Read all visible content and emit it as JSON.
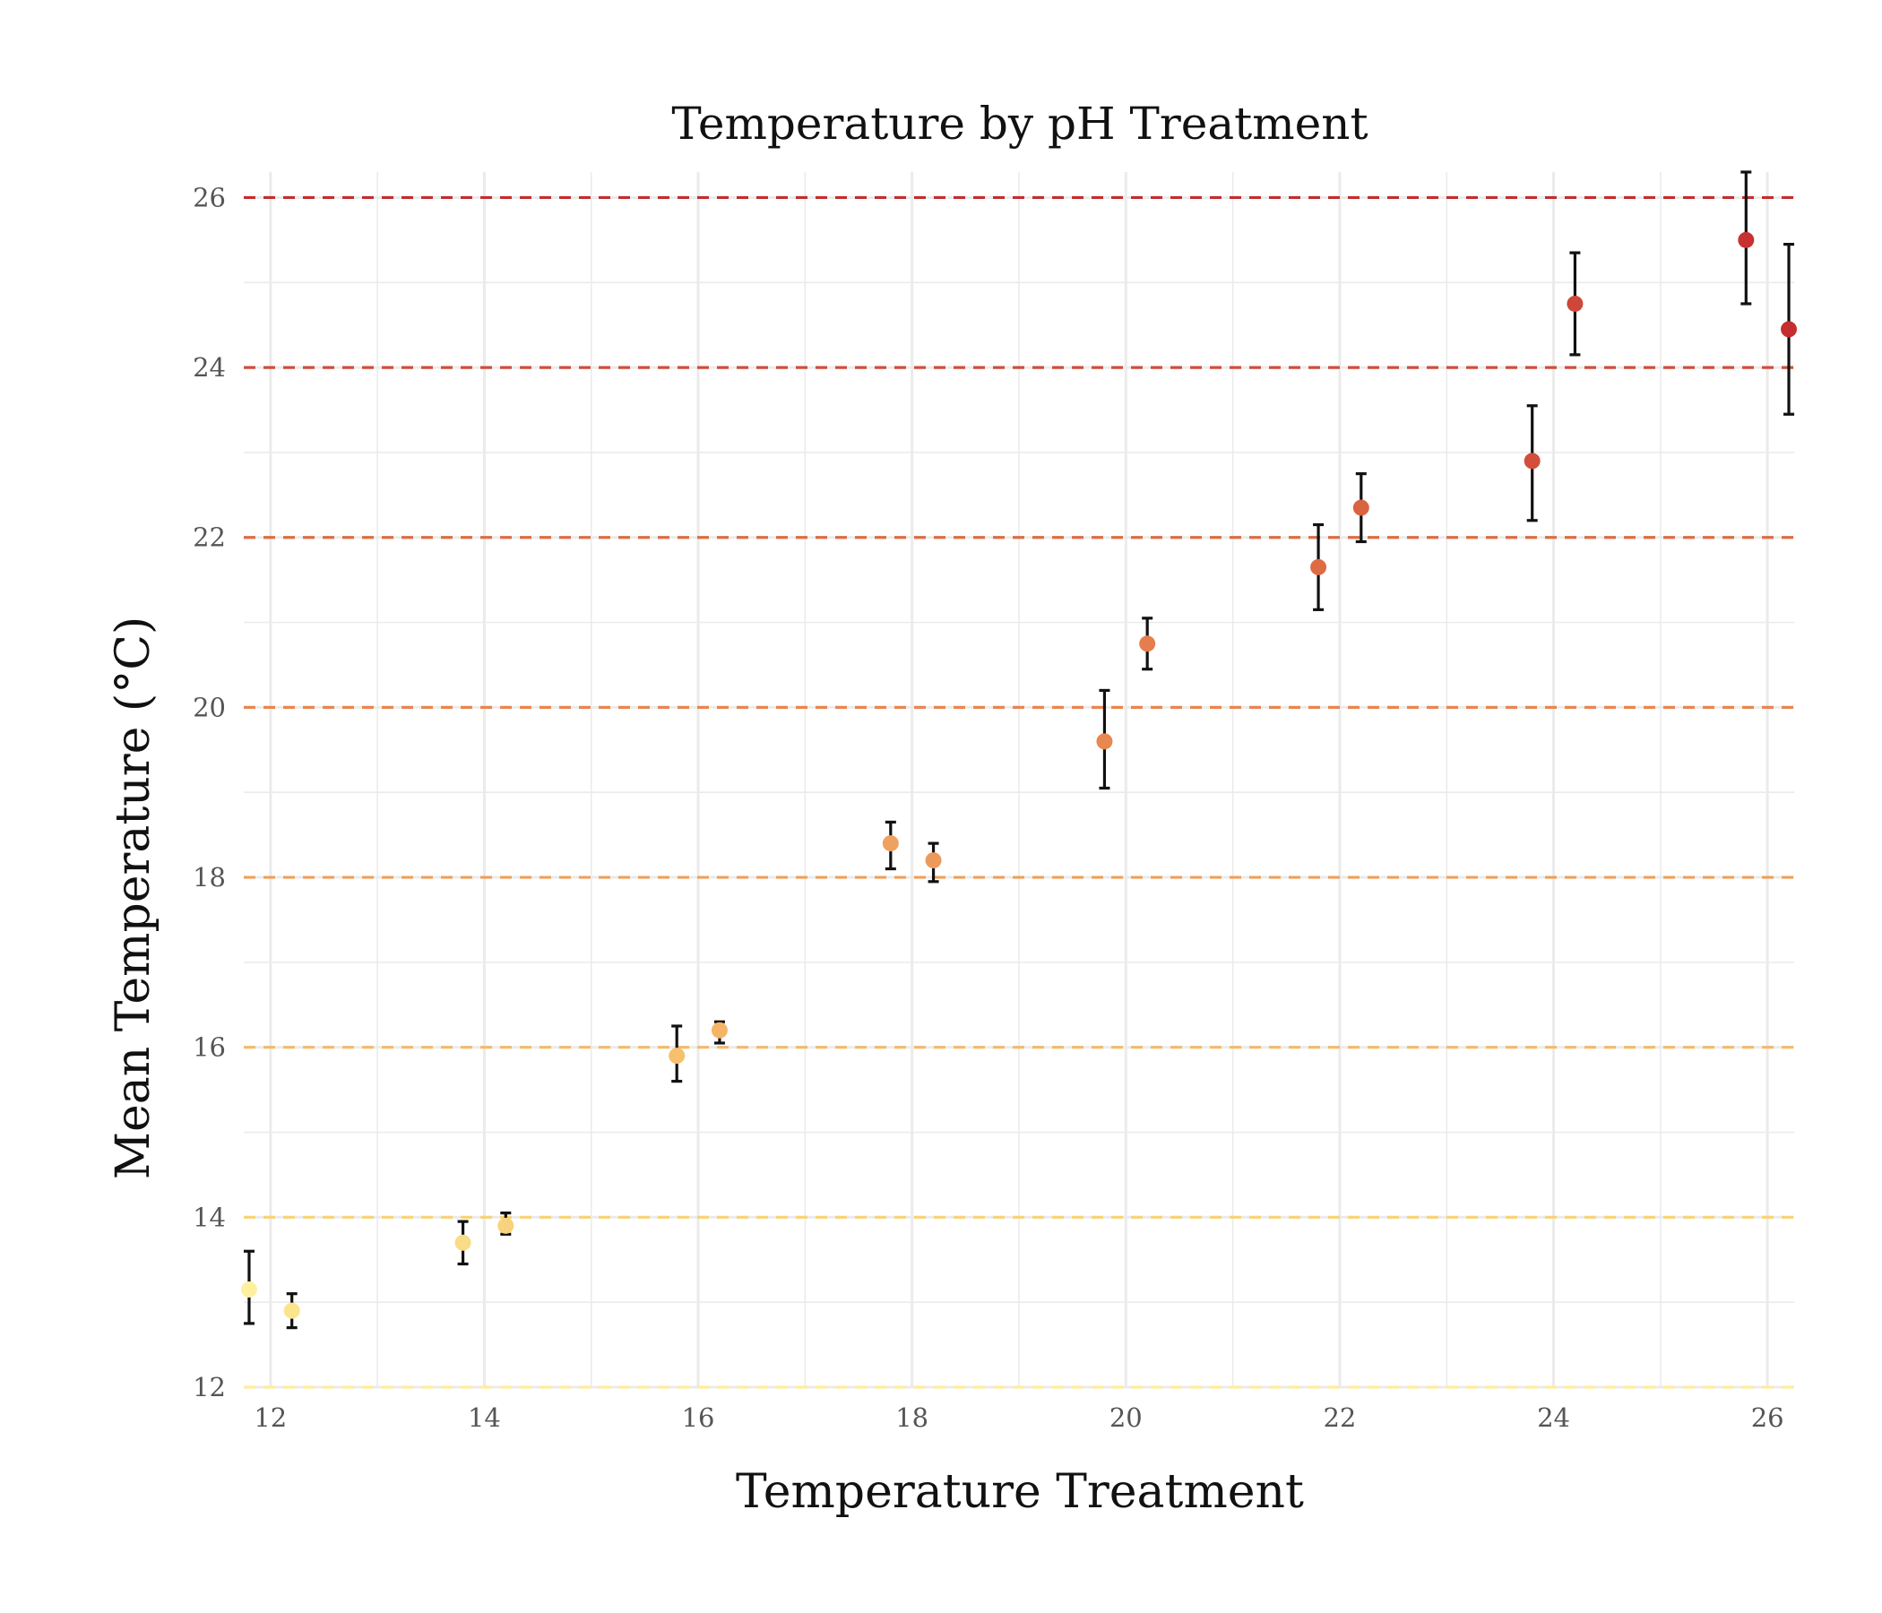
{
  "chart_data": {
    "type": "scatter",
    "title": "Temperature by pH Treatment",
    "xlabel": "Temperature Treatment",
    "ylabel": "Mean Temperature (°C)",
    "xlim": [
      11.75,
      26.25
    ],
    "ylim": [
      12,
      26.3
    ],
    "xticks": [
      12,
      14,
      16,
      18,
      20,
      22,
      24,
      26
    ],
    "yticks": [
      12,
      14,
      16,
      18,
      20,
      22,
      24,
      26
    ],
    "xtick_labels": [
      "12",
      "14",
      "16",
      "18",
      "20",
      "22",
      "24",
      "26"
    ],
    "ytick_labels": [
      "12",
      "14",
      "16",
      "18",
      "20",
      "22",
      "24",
      "26"
    ],
    "grid": true,
    "legend": "none",
    "reference_lines": [
      {
        "y": 12,
        "color": "#ffec9a",
        "style": "dashed"
      },
      {
        "y": 14,
        "color": "#f7d478",
        "style": "dashed"
      },
      {
        "y": 16,
        "color": "#f5b96a",
        "style": "dashed"
      },
      {
        "y": 18,
        "color": "#efa05c",
        "style": "dashed"
      },
      {
        "y": 20,
        "color": "#e8864f",
        "style": "dashed"
      },
      {
        "y": 22,
        "color": "#dd6c45",
        "style": "dashed"
      },
      {
        "y": 24,
        "color": "#d04d3b",
        "style": "dashed"
      },
      {
        "y": 26,
        "color": "#c42c2e",
        "style": "dashed"
      }
    ],
    "points": [
      {
        "x": 11.8,
        "y": 13.15,
        "lo": 12.75,
        "hi": 13.6,
        "color": "#fff0a0"
      },
      {
        "x": 12.2,
        "y": 12.9,
        "lo": 12.7,
        "hi": 13.1,
        "color": "#fbe58c"
      },
      {
        "x": 13.8,
        "y": 13.7,
        "lo": 13.45,
        "hi": 13.95,
        "color": "#f9dc86"
      },
      {
        "x": 14.2,
        "y": 13.9,
        "lo": 13.8,
        "hi": 14.05,
        "color": "#f8d27c"
      },
      {
        "x": 15.8,
        "y": 15.9,
        "lo": 15.6,
        "hi": 16.25,
        "color": "#f6c06e"
      },
      {
        "x": 16.2,
        "y": 16.2,
        "lo": 16.05,
        "hi": 16.3,
        "color": "#f4b566"
      },
      {
        "x": 17.8,
        "y": 18.4,
        "lo": 18.1,
        "hi": 18.65,
        "color": "#efa160"
      },
      {
        "x": 18.2,
        "y": 18.2,
        "lo": 17.95,
        "hi": 18.4,
        "color": "#ec9a5b"
      },
      {
        "x": 19.8,
        "y": 19.6,
        "lo": 19.05,
        "hi": 20.2,
        "color": "#e8874f"
      },
      {
        "x": 20.2,
        "y": 20.75,
        "lo": 20.45,
        "hi": 21.05,
        "color": "#e57e4c"
      },
      {
        "x": 21.8,
        "y": 21.65,
        "lo": 21.15,
        "hi": 22.15,
        "color": "#dd6c45"
      },
      {
        "x": 22.2,
        "y": 22.35,
        "lo": 21.95,
        "hi": 22.75,
        "color": "#d96442"
      },
      {
        "x": 23.8,
        "y": 22.9,
        "lo": 22.2,
        "hi": 23.55,
        "color": "#d24f3c"
      },
      {
        "x": 24.2,
        "y": 24.75,
        "lo": 24.15,
        "hi": 25.35,
        "color": "#cf4738"
      },
      {
        "x": 25.8,
        "y": 25.5,
        "lo": 24.75,
        "hi": 26.3,
        "color": "#c83131"
      },
      {
        "x": 26.2,
        "y": 24.45,
        "lo": 23.45,
        "hi": 25.45,
        "color": "#c62d2f"
      }
    ]
  }
}
